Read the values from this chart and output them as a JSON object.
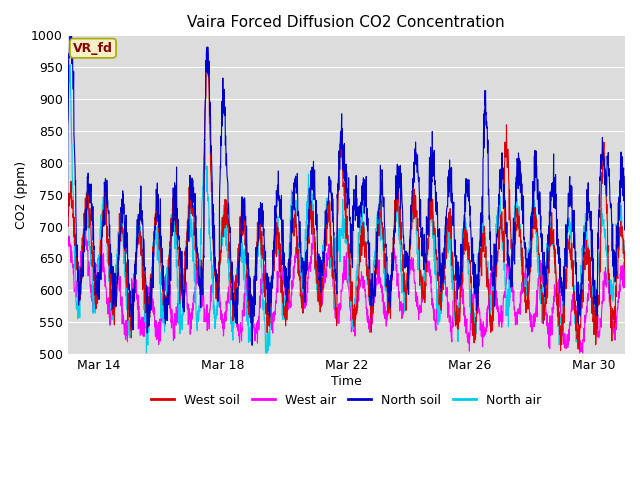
{
  "title": "Vaira Forced Diffusion CO2 Concentration",
  "xlabel": "Time",
  "ylabel": "CO2 (ppm)",
  "ylim": [
    500,
    1000
  ],
  "yticks": [
    500,
    550,
    600,
    650,
    700,
    750,
    800,
    850,
    900,
    950,
    1000
  ],
  "xtick_labels": [
    "Mar 14",
    "Mar 18",
    "Mar 22",
    "Mar 26",
    "Mar 30"
  ],
  "legend_label": "VR_fd",
  "series_colors": {
    "west_soil": "#dd0000",
    "west_air": "#ff00ff",
    "north_soil": "#0000cc",
    "north_air": "#00ccee"
  },
  "legend_entries": [
    "West soil",
    "West air",
    "North soil",
    "North air"
  ],
  "bg_color": "#dcdcdc",
  "plot_bg_color": "#dcdcdc",
  "fig_bg_color": "#ffffff",
  "grid_color": "#ffffff",
  "n_points": 2000,
  "annotation_box_color": "#f5f0c8",
  "annotation_text_color": "#8b0000",
  "linewidth": 0.8
}
